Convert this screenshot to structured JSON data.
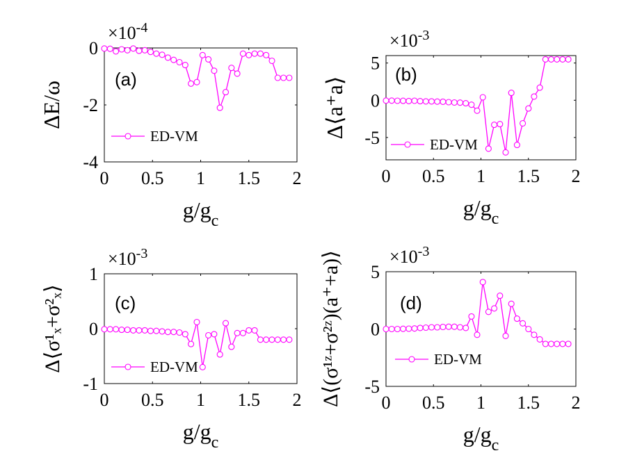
{
  "chart_data": [
    {
      "type": "line",
      "panel_label": "(a)",
      "xlabel": "g/g",
      "xlabel_sub": "c",
      "ylabel": "ΔE/ω",
      "multiplier": "×10",
      "multiplier_exp": "-4",
      "xlim": [
        0,
        2
      ],
      "ylim": [
        -4,
        0
      ],
      "xticks": [
        0,
        0.5,
        1,
        1.5,
        2
      ],
      "xtick_labels": [
        "0",
        "0.5",
        "1",
        "1.5",
        "2"
      ],
      "yticks": [
        -4,
        -2,
        0
      ],
      "ytick_labels": [
        "-4",
        "-2",
        "0"
      ],
      "legend": "ED-VM",
      "series": [
        {
          "name": "ED-VM",
          "x": [
            0,
            0.06,
            0.12,
            0.18,
            0.24,
            0.3,
            0.36,
            0.42,
            0.48,
            0.54,
            0.6,
            0.66,
            0.72,
            0.78,
            0.84,
            0.9,
            0.96,
            1.02,
            1.08,
            1.14,
            1.2,
            1.26,
            1.32,
            1.38,
            1.44,
            1.5,
            1.56,
            1.62,
            1.68,
            1.74,
            1.8,
            1.86,
            1.92
          ],
          "values": [
            -0.02,
            -0.03,
            -0.12,
            -0.05,
            -0.08,
            -0.02,
            -0.1,
            -0.08,
            -0.14,
            -0.2,
            -0.24,
            -0.34,
            -0.42,
            -0.5,
            -0.6,
            -1.25,
            -1.2,
            -0.25,
            -0.4,
            -0.8,
            -2.1,
            -1.55,
            -0.7,
            -0.9,
            -0.2,
            -0.25,
            -0.2,
            -0.2,
            -0.25,
            -0.45,
            -1.05,
            -1.05,
            -1.05
          ]
        }
      ]
    },
    {
      "type": "line",
      "panel_label": "(b)",
      "xlabel": "g/g",
      "xlabel_sub": "c",
      "ylabel": "Δ⟨a⁺a⟩",
      "multiplier": "×10",
      "multiplier_exp": "-3",
      "xlim": [
        0,
        2
      ],
      "ylim": [
        -8,
        6
      ],
      "xticks": [
        0,
        0.5,
        1,
        1.5,
        2
      ],
      "xtick_labels": [
        "0",
        "0.5",
        "1",
        "1.5",
        "2"
      ],
      "yticks": [
        -5,
        0,
        5
      ],
      "ytick_labels": [
        "-5",
        "0",
        "5"
      ],
      "legend": "ED-VM",
      "series": [
        {
          "name": "ED-VM",
          "x": [
            0,
            0.06,
            0.12,
            0.18,
            0.24,
            0.3,
            0.36,
            0.42,
            0.48,
            0.54,
            0.6,
            0.66,
            0.72,
            0.78,
            0.84,
            0.9,
            0.96,
            1.02,
            1.08,
            1.14,
            1.2,
            1.26,
            1.32,
            1.38,
            1.44,
            1.5,
            1.56,
            1.62,
            1.68,
            1.74,
            1.8,
            1.86,
            1.92
          ],
          "values": [
            -0.05,
            -0.05,
            -0.07,
            -0.08,
            -0.1,
            -0.07,
            -0.12,
            -0.15,
            -0.15,
            -0.18,
            -0.2,
            -0.25,
            -0.3,
            -0.32,
            -0.4,
            -0.6,
            -1.4,
            0.4,
            -6.5,
            -3.3,
            -3.2,
            -7.0,
            1.0,
            -6.0,
            -3.1,
            -1.1,
            0.5,
            1.7,
            5.5,
            5.5,
            5.5,
            5.5,
            5.5
          ]
        }
      ]
    },
    {
      "type": "line",
      "panel_label": "(c)",
      "xlabel": "g/g",
      "xlabel_sub": "c",
      "ylabel": "Δ⟨σ¹ₓ+σ²ₓ⟩",
      "multiplier": "×10",
      "multiplier_exp": "-3",
      "xlim": [
        0,
        2
      ],
      "ylim": [
        -1,
        1
      ],
      "xticks": [
        0,
        0.5,
        1,
        1.5,
        2
      ],
      "xtick_labels": [
        "0",
        "0.5",
        "1",
        "1.5",
        "2"
      ],
      "yticks": [
        -1,
        0,
        1
      ],
      "ytick_labels": [
        "-1",
        "0",
        "1"
      ],
      "legend": "ED-VM",
      "series": [
        {
          "name": "ED-VM",
          "x": [
            0,
            0.06,
            0.12,
            0.18,
            0.24,
            0.3,
            0.36,
            0.42,
            0.48,
            0.54,
            0.6,
            0.66,
            0.72,
            0.78,
            0.84,
            0.9,
            0.96,
            1.02,
            1.08,
            1.14,
            1.2,
            1.26,
            1.32,
            1.38,
            1.44,
            1.5,
            1.56,
            1.62,
            1.68,
            1.74,
            1.8,
            1.86,
            1.92
          ],
          "values": [
            -0.01,
            -0.01,
            -0.01,
            -0.02,
            -0.02,
            -0.03,
            -0.03,
            -0.03,
            -0.04,
            -0.04,
            -0.05,
            -0.06,
            -0.06,
            -0.07,
            -0.1,
            -0.28,
            0.12,
            -0.7,
            -0.12,
            -0.1,
            -0.47,
            0.1,
            -0.33,
            -0.08,
            -0.08,
            -0.03,
            -0.03,
            -0.2,
            -0.2,
            -0.2,
            -0.2,
            -0.2,
            -0.2
          ]
        }
      ]
    },
    {
      "type": "line",
      "panel_label": "(d)",
      "xlabel": "g/g",
      "xlabel_sub": "c",
      "ylabel": "Δ⟨(σ¹ᶻ+σ²ᶻ)(a⁺+a)⟩",
      "multiplier": "×10",
      "multiplier_exp": "-3",
      "xlim": [
        0,
        2
      ],
      "ylim": [
        -5,
        5
      ],
      "xticks": [
        0,
        0.5,
        1,
        1.5,
        2
      ],
      "xtick_labels": [
        "0",
        "0.5",
        "1",
        "1.5",
        "2"
      ],
      "yticks": [
        -5,
        0,
        5
      ],
      "ytick_labels": [
        "-5",
        "0",
        "5"
      ],
      "legend": "ED-VM",
      "series": [
        {
          "name": "ED-VM",
          "x": [
            0,
            0.06,
            0.12,
            0.18,
            0.24,
            0.3,
            0.36,
            0.42,
            0.48,
            0.54,
            0.6,
            0.66,
            0.72,
            0.78,
            0.84,
            0.9,
            0.96,
            1.02,
            1.08,
            1.14,
            1.2,
            1.26,
            1.32,
            1.38,
            1.44,
            1.5,
            1.56,
            1.62,
            1.68,
            1.74,
            1.8,
            1.86,
            1.92
          ],
          "values": [
            0.0,
            0.0,
            0.0,
            0.02,
            0.03,
            0.05,
            0.1,
            0.12,
            0.15,
            0.15,
            0.18,
            0.2,
            0.2,
            0.15,
            0.1,
            1.1,
            -0.5,
            4.1,
            1.5,
            1.8,
            2.9,
            -0.6,
            2.2,
            0.9,
            0.5,
            0.0,
            -0.5,
            -0.9,
            -1.3,
            -1.3,
            -1.3,
            -1.3,
            -1.3
          ]
        }
      ]
    }
  ]
}
